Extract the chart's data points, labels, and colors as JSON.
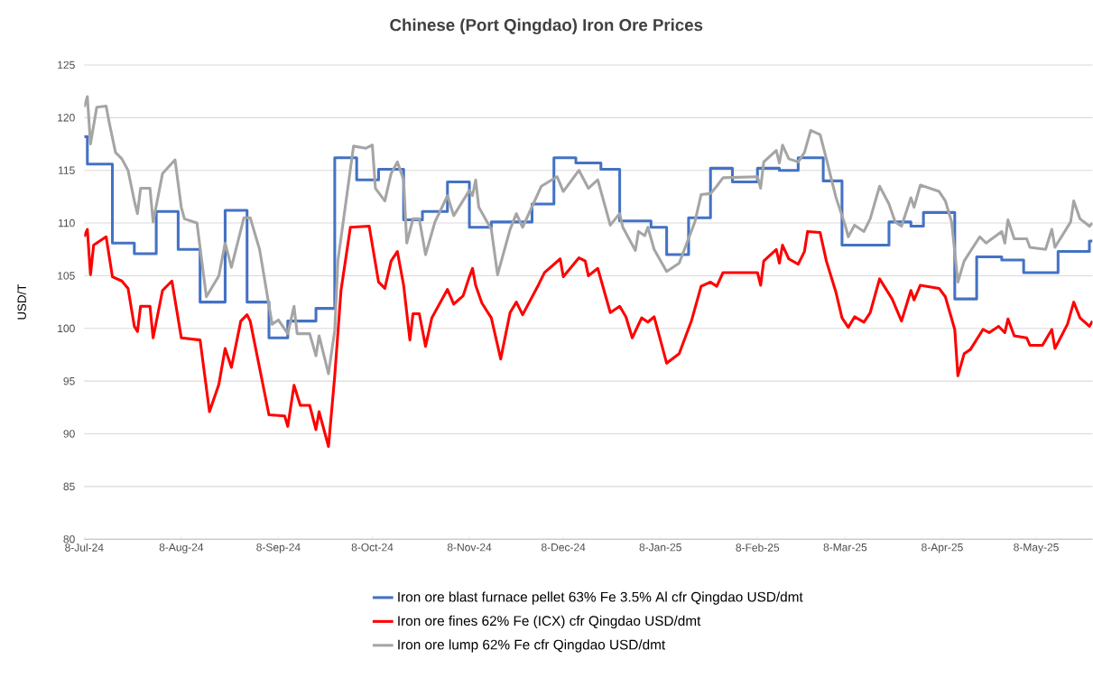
{
  "chart_data": {
    "type": "line",
    "title": "Chinese (Port Qingdao) Iron Ore Prices",
    "ylabel": "USD/T",
    "ylim": [
      80,
      125
    ],
    "yticks": [
      80,
      85,
      90,
      95,
      100,
      105,
      110,
      115,
      120,
      125
    ],
    "xlim": [
      "2024-07-08",
      "2025-05-26"
    ],
    "xticks": [
      {
        "value": "2024-07-08",
        "label": "8-Jul-24"
      },
      {
        "value": "2024-08-08",
        "label": "8-Aug-24"
      },
      {
        "value": "2024-09-08",
        "label": "8-Sep-24"
      },
      {
        "value": "2024-10-08",
        "label": "8-Oct-24"
      },
      {
        "value": "2024-11-08",
        "label": "8-Nov-24"
      },
      {
        "value": "2024-12-08",
        "label": "8-Dec-24"
      },
      {
        "value": "2025-01-08",
        "label": "8-Jan-25"
      },
      {
        "value": "2025-02-08",
        "label": "8-Feb-25"
      },
      {
        "value": "2025-03-08",
        "label": "8-Mar-25"
      },
      {
        "value": "2025-04-08",
        "label": "8-Apr-25"
      },
      {
        "value": "2025-05-08",
        "label": "8-May-25"
      }
    ],
    "grid": "y",
    "legend": "bottom",
    "line_style": "solid",
    "series": [
      {
        "name": "Iron ore blast furnace pellet 63% Fe 3.5% Al cfr Qingdao USD/dmt",
        "type": "step",
        "color": "#4472c4",
        "x": [
          "2024-07-08",
          "2024-07-09",
          "2024-07-17",
          "2024-07-24",
          "2024-07-31",
          "2024-08-07",
          "2024-08-14",
          "2024-08-22",
          "2024-08-29",
          "2024-09-05",
          "2024-09-11",
          "2024-09-20",
          "2024-09-26",
          "2024-10-03",
          "2024-10-10",
          "2024-10-18",
          "2024-10-24",
          "2024-11-01",
          "2024-11-08",
          "2024-11-15",
          "2024-11-28",
          "2024-12-05",
          "2024-12-12",
          "2024-12-20",
          "2024-12-26",
          "2025-01-05",
          "2025-01-10",
          "2025-01-17",
          "2025-01-24",
          "2025-01-31",
          "2025-02-08",
          "2025-02-15",
          "2025-02-21",
          "2025-03-01",
          "2025-03-07",
          "2025-03-22",
          "2025-03-29",
          "2025-04-02",
          "2025-04-12",
          "2025-04-19",
          "2025-04-27",
          "2025-05-04",
          "2025-05-15",
          "2025-05-25",
          "2025-05-26"
        ],
        "values": [
          118.2,
          115.6,
          108.1,
          107.1,
          111.1,
          107.5,
          102.5,
          111.2,
          102.5,
          99.1,
          100.7,
          101.9,
          116.2,
          114.1,
          115.1,
          110.3,
          111.1,
          113.9,
          109.6,
          110.1,
          111.8,
          116.2,
          115.7,
          115.1,
          110.2,
          109.6,
          107,
          110.5,
          115.2,
          113.9,
          115.2,
          115,
          116.2,
          114,
          107.9,
          110.1,
          109.7,
          111,
          102.8,
          106.8,
          106.5,
          105.3,
          107.3,
          108.3,
          108.3
        ]
      },
      {
        "name": "Iron ore fines 62% Fe (ICX) cfr Qingdao USD/dmt",
        "type": "line",
        "color": "#ff0000",
        "x": [
          "2024-07-08",
          "2024-07-09",
          "2024-07-10",
          "2024-07-11",
          "2024-07-15",
          "2024-07-17",
          "2024-07-20",
          "2024-07-22",
          "2024-07-24",
          "2024-07-25",
          "2024-07-26",
          "2024-07-29",
          "2024-07-30",
          "2024-08-02",
          "2024-08-05",
          "2024-08-08",
          "2024-08-14",
          "2024-08-17",
          "2024-08-20",
          "2024-08-22",
          "2024-08-24",
          "2024-08-27",
          "2024-08-29",
          "2024-08-30",
          "2024-09-05",
          "2024-09-10",
          "2024-09-11",
          "2024-09-13",
          "2024-09-15",
          "2024-09-18",
          "2024-09-20",
          "2024-09-21",
          "2024-09-24",
          "2024-09-26",
          "2024-09-28",
          "2024-10-01",
          "2024-10-07",
          "2024-10-10",
          "2024-10-12",
          "2024-10-14",
          "2024-10-16",
          "2024-10-18",
          "2024-10-20",
          "2024-10-21",
          "2024-10-23",
          "2024-10-25",
          "2024-10-27",
          "2024-11-01",
          "2024-11-03",
          "2024-11-06",
          "2024-11-08",
          "2024-11-09",
          "2024-11-10",
          "2024-11-12",
          "2024-11-15",
          "2024-11-18",
          "2024-11-21",
          "2024-11-23",
          "2024-11-25",
          "2024-11-30",
          "2024-12-02",
          "2024-12-07",
          "2024-12-08",
          "2024-12-13",
          "2024-12-15",
          "2024-12-16",
          "2024-12-19",
          "2024-12-23",
          "2024-12-26",
          "2024-12-28",
          "2024-12-30",
          "2025-01-02",
          "2025-01-04",
          "2025-01-06",
          "2025-01-10",
          "2025-01-14",
          "2025-01-18",
          "2025-01-21",
          "2025-01-24",
          "2025-01-26",
          "2025-01-28",
          "2025-02-08",
          "2025-02-09",
          "2025-02-10",
          "2025-02-14",
          "2025-02-15",
          "2025-02-16",
          "2025-02-18",
          "2025-02-21",
          "2025-02-23",
          "2025-02-24",
          "2025-02-28",
          "2025-03-02",
          "2025-03-05",
          "2025-03-07",
          "2025-03-09",
          "2025-03-11",
          "2025-03-14",
          "2025-03-16",
          "2025-03-19",
          "2025-03-23",
          "2025-03-26",
          "2025-03-29",
          "2025-03-30",
          "2025-04-01",
          "2025-04-07",
          "2025-04-09",
          "2025-04-12",
          "2025-04-13",
          "2025-04-15",
          "2025-04-17",
          "2025-04-21",
          "2025-04-23",
          "2025-04-26",
          "2025-04-28",
          "2025-04-29",
          "2025-05-01",
          "2025-05-05",
          "2025-05-06",
          "2025-05-10",
          "2025-05-13",
          "2025-05-14",
          "2025-05-18",
          "2025-05-20",
          "2025-05-22",
          "2025-05-25",
          "2025-05-26"
        ],
        "values": [
          108.7,
          109.4,
          105.1,
          107.9,
          108.7,
          104.9,
          104.5,
          103.8,
          100.2,
          99.7,
          102.1,
          102.1,
          99.1,
          103.6,
          104.5,
          99.1,
          98.9,
          92.1,
          94.7,
          98.1,
          96.3,
          100.7,
          101.3,
          100.7,
          91.8,
          91.7,
          90.7,
          94.6,
          92.7,
          92.7,
          90.4,
          92.1,
          88.8,
          95.5,
          103.6,
          109.6,
          109.7,
          104.4,
          103.8,
          106.4,
          107.3,
          104.1,
          98.9,
          101.4,
          101.4,
          98.3,
          101,
          103.7,
          102.3,
          103.1,
          104.9,
          105.7,
          104.1,
          102.4,
          101,
          97.1,
          101.5,
          102.5,
          101.3,
          104.1,
          105.3,
          106.6,
          104.9,
          106.7,
          106.4,
          105,
          105.7,
          101.5,
          102.1,
          101.1,
          99.1,
          101,
          100.6,
          101.1,
          96.7,
          97.6,
          100.8,
          104,
          104.4,
          104,
          105.3,
          105.3,
          104.1,
          106.4,
          107.5,
          106.2,
          107.9,
          106.6,
          106.1,
          107.3,
          109.2,
          109.1,
          106.4,
          103.5,
          101,
          100.1,
          101.1,
          100.6,
          101.5,
          104.7,
          102.8,
          100.7,
          103.6,
          102.7,
          104.1,
          103.8,
          103,
          99.9,
          95.5,
          97.6,
          98,
          99.9,
          99.6,
          100.2,
          99.6,
          100.9,
          99.3,
          99.1,
          98.4,
          98.4,
          99.9,
          98.1,
          100.4,
          102.5,
          101,
          100.2,
          100.7
        ]
      },
      {
        "name": "Iron ore lump 62% Fe cfr Qingdao USD/dmt",
        "type": "line",
        "color": "#a5a5a5",
        "x": [
          "2024-07-08",
          "2024-07-09",
          "2024-07-10",
          "2024-07-12",
          "2024-07-15",
          "2024-07-16",
          "2024-07-18",
          "2024-07-20",
          "2024-07-22",
          "2024-07-24",
          "2024-07-25",
          "2024-07-26",
          "2024-07-29",
          "2024-07-30",
          "2024-08-02",
          "2024-08-06",
          "2024-08-08",
          "2024-08-09",
          "2024-08-13",
          "2024-08-16",
          "2024-08-20",
          "2024-08-22",
          "2024-08-24",
          "2024-08-28",
          "2024-08-30",
          "2024-09-02",
          "2024-09-06",
          "2024-09-08",
          "2024-09-11",
          "2024-09-13",
          "2024-09-14",
          "2024-09-18",
          "2024-09-20",
          "2024-09-21",
          "2024-09-24",
          "2024-09-26",
          "2024-09-27",
          "2024-10-02",
          "2024-10-06",
          "2024-10-08",
          "2024-10-09",
          "2024-10-12",
          "2024-10-14",
          "2024-10-16",
          "2024-10-18",
          "2024-10-19",
          "2024-10-21",
          "2024-10-23",
          "2024-10-25",
          "2024-10-28",
          "2024-11-01",
          "2024-11-03",
          "2024-11-08",
          "2024-11-09",
          "2024-11-10",
          "2024-11-11",
          "2024-11-15",
          "2024-11-17",
          "2024-11-21",
          "2024-11-23",
          "2024-11-25",
          "2024-12-01",
          "2024-12-06",
          "2024-12-08",
          "2024-12-13",
          "2024-12-16",
          "2024-12-19",
          "2024-12-23",
          "2024-12-26",
          "2024-12-27",
          "2024-12-31",
          "2025-01-01",
          "2025-01-03",
          "2025-01-04",
          "2025-01-06",
          "2025-01-10",
          "2025-01-14",
          "2025-01-19",
          "2025-01-21",
          "2025-01-24",
          "2025-01-26",
          "2025-01-28",
          "2025-02-08",
          "2025-02-09",
          "2025-02-10",
          "2025-02-14",
          "2025-02-15",
          "2025-02-16",
          "2025-02-18",
          "2025-02-21",
          "2025-02-23",
          "2025-02-25",
          "2025-02-28",
          "2025-03-02",
          "2025-03-05",
          "2025-03-08",
          "2025-03-09",
          "2025-03-11",
          "2025-03-14",
          "2025-03-16",
          "2025-03-19",
          "2025-03-22",
          "2025-03-24",
          "2025-03-26",
          "2025-03-29",
          "2025-03-30",
          "2025-04-01",
          "2025-04-07",
          "2025-04-09",
          "2025-04-11",
          "2025-04-13",
          "2025-04-15",
          "2025-04-20",
          "2025-04-22",
          "2025-04-27",
          "2025-04-28",
          "2025-04-29",
          "2025-05-01",
          "2025-05-05",
          "2025-05-06",
          "2025-05-11",
          "2025-05-13",
          "2025-05-14",
          "2025-05-19",
          "2025-05-20",
          "2025-05-22",
          "2025-05-25",
          "2025-05-26"
        ],
        "values": [
          121,
          122,
          117.5,
          121,
          121.1,
          119.5,
          116.7,
          116.1,
          115,
          112.1,
          110.9,
          113.3,
          113.3,
          110.1,
          114.7,
          116,
          111.5,
          110.4,
          110,
          103,
          105,
          108.1,
          105.8,
          110.5,
          110.5,
          107.5,
          100.4,
          100.8,
          99.5,
          102.1,
          99.5,
          99.5,
          97.4,
          99.3,
          95.7,
          99.8,
          106.4,
          117.3,
          117.1,
          117.4,
          113.3,
          112.1,
          114.7,
          115.8,
          114.1,
          108.1,
          110.4,
          110.4,
          107,
          110.1,
          112.6,
          110.7,
          113.1,
          112.6,
          114.1,
          111.5,
          109.4,
          105.1,
          109.4,
          110.9,
          109.6,
          113.5,
          114.4,
          113,
          115,
          113.3,
          114.1,
          109.8,
          110.9,
          109.6,
          107.4,
          109.2,
          108.8,
          109.6,
          107.5,
          105.4,
          106.2,
          110.1,
          112.7,
          112.8,
          113.5,
          114.3,
          114.4,
          113.3,
          115.8,
          116.9,
          115.7,
          117.4,
          116.1,
          115.8,
          116.7,
          118.8,
          118.4,
          116.1,
          112.5,
          109.8,
          108.7,
          109.8,
          109.2,
          110.4,
          113.5,
          111.8,
          110.1,
          109.7,
          112.4,
          111.5,
          113.6,
          113,
          112.1,
          110.1,
          104.4,
          106.4,
          108.7,
          108.1,
          109.2,
          108.1,
          110.3,
          108.5,
          108.5,
          107.7,
          107.5,
          109.4,
          107.7,
          110.1,
          112.1,
          110.4,
          109.7,
          110
        ]
      }
    ]
  }
}
